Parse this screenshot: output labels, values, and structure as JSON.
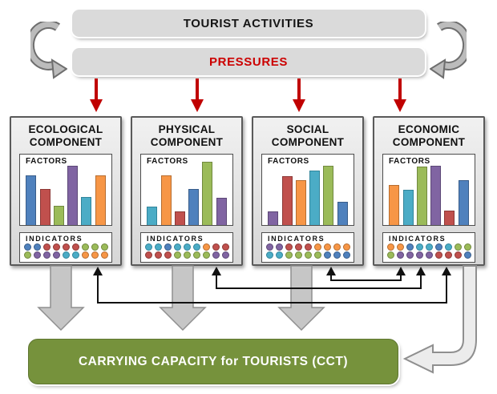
{
  "colors": {
    "palette": {
      "blue": {
        "fill": "#4F81BD",
        "border": "#385D8A"
      },
      "red": {
        "fill": "#C0504D",
        "border": "#8C3836"
      },
      "green": {
        "fill": "#9BBB59",
        "border": "#71893F"
      },
      "purple": {
        "fill": "#8064A2",
        "border": "#5C4776"
      },
      "cyan": {
        "fill": "#4BACC6",
        "border": "#31859B"
      },
      "orange": {
        "fill": "#F79646",
        "border": "#B66D30"
      }
    },
    "pressure_arrow_red": "#C00000",
    "pressures_text_red": "#CC0000",
    "cct_banner_green": "#76923C"
  },
  "top": {
    "tourist_activities_label": "TOURIST ACTIVITIES",
    "pressures_label": "PRESSURES"
  },
  "components": [
    {
      "title": "ECOLOGICAL COMPONENT",
      "factors_label": "FACTORS",
      "indicators_label": "INDICATORS",
      "factors_chart": {
        "type": "bar",
        "bar_colors": [
          "blue",
          "red",
          "green",
          "purple",
          "cyan",
          "orange"
        ],
        "bar_heights_pct": [
          78,
          56,
          30,
          92,
          44,
          77
        ]
      },
      "indicator_dots": {
        "top_row": [
          "blue",
          "blue",
          "red",
          "red",
          "red",
          "red",
          "green",
          "green",
          "green"
        ],
        "bottom_row": [
          "green",
          "purple",
          "purple",
          "purple",
          "cyan",
          "cyan",
          "orange",
          "orange",
          "orange"
        ]
      }
    },
    {
      "title": "PHYSICAL COMPONENT",
      "factors_label": "FACTORS",
      "indicators_label": "INDICATORS",
      "factors_chart": {
        "type": "bar",
        "bar_colors": [
          "cyan",
          "orange",
          "red",
          "blue",
          "green",
          "purple"
        ],
        "bar_heights_pct": [
          29,
          78,
          21,
          56,
          99,
          43
        ]
      },
      "indicator_dots": {
        "top_row": [
          "cyan",
          "cyan",
          "blue",
          "cyan",
          "cyan",
          "cyan",
          "orange",
          "red",
          "red"
        ],
        "bottom_row": [
          "red",
          "red",
          "red",
          "green",
          "green",
          "green",
          "green",
          "purple",
          "purple"
        ]
      }
    },
    {
      "title": "SOCIAL COMPONENT",
      "factors_label": "FACTORS",
      "indicators_label": "INDICATORS",
      "factors_chart": {
        "type": "bar",
        "bar_colors": [
          "purple",
          "red",
          "orange",
          "cyan",
          "green",
          "blue"
        ],
        "bar_heights_pct": [
          21,
          76,
          70,
          85,
          92,
          36
        ]
      },
      "indicator_dots": {
        "top_row": [
          "purple",
          "purple",
          "red",
          "red",
          "red",
          "orange",
          "orange",
          "orange",
          "orange"
        ],
        "bottom_row": [
          "cyan",
          "cyan",
          "green",
          "green",
          "green",
          "green",
          "blue",
          "blue",
          "blue"
        ]
      }
    },
    {
      "title": "ECONOMIC COMPONENT",
      "factors_label": "FACTORS",
      "indicators_label": "INDICATORS",
      "factors_chart": {
        "type": "bar",
        "bar_colors": [
          "orange",
          "cyan",
          "green",
          "purple",
          "red",
          "blue"
        ],
        "bar_heights_pct": [
          62,
          55,
          91,
          92,
          22,
          70
        ]
      },
      "indicator_dots": {
        "top_row": [
          "orange",
          "orange",
          "blue",
          "cyan",
          "cyan",
          "blue",
          "cyan",
          "green",
          "green"
        ],
        "bottom_row": [
          "green",
          "purple",
          "purple",
          "purple",
          "purple",
          "red",
          "red",
          "red",
          "blue"
        ]
      }
    }
  ],
  "bottom": {
    "cct_label": "CARRYING CAPACITY for TOURISTS (CCT)"
  }
}
